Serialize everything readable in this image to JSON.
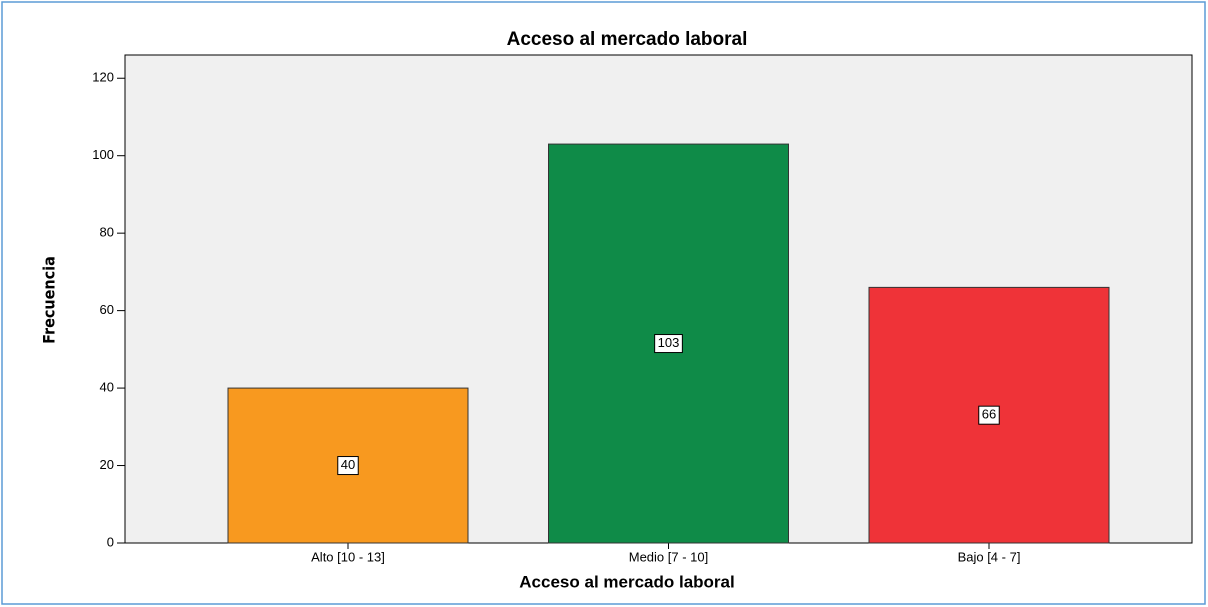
{
  "chart_data": {
    "type": "bar",
    "title": "Acceso al mercado laboral",
    "x_label": "Acceso al mercado laboral",
    "y_label": "Frecuencia",
    "categories": [
      "Alto [10 - 13]",
      "Medio [7 - 10]",
      "Bajo [4 - 7]"
    ],
    "values": [
      40,
      103,
      66
    ],
    "colors": [
      "#f8991f",
      "#0f8b48",
      "#ef3338"
    ],
    "ylim": [
      0,
      126
    ],
    "yticks": [
      0,
      20,
      40,
      60,
      80,
      100,
      120
    ],
    "grid": false
  }
}
